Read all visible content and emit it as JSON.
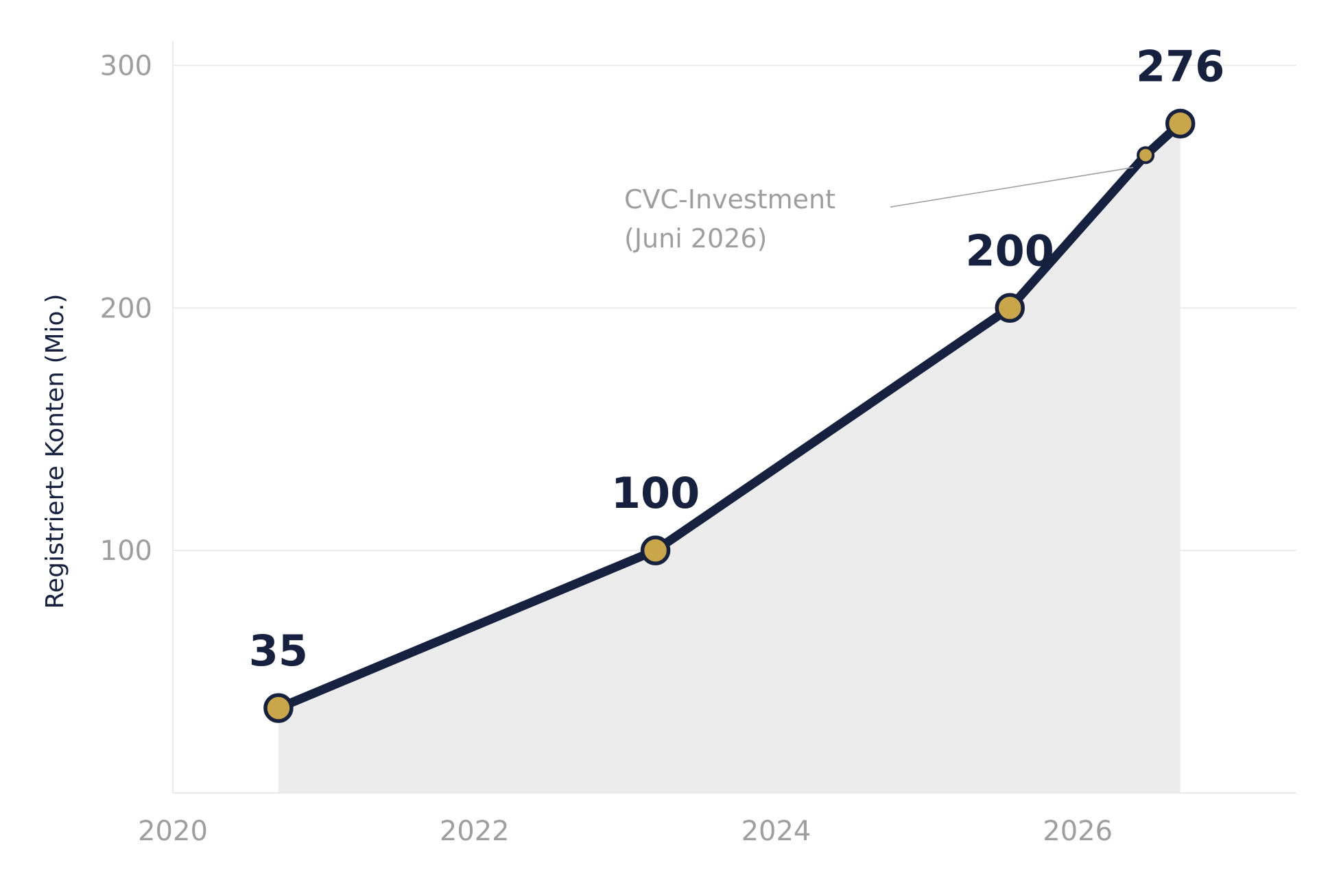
{
  "colors": {
    "line": "#16213f",
    "marker_fill": "#c9a64a",
    "area_fill": "#ececec",
    "grid": "#ebebeb",
    "axis_text": "#9e9e9e",
    "label_text": "#16213f"
  },
  "chart_data": {
    "type": "line",
    "title": "",
    "xlabel": "",
    "ylabel": "Registrierte Konten (Mio.)",
    "xlim": [
      2020,
      2027.45
    ],
    "ylim": [
      0,
      310
    ],
    "grid": true,
    "area_under_line": true,
    "x_ticks": [
      "2020",
      "2022",
      "2024",
      "2026"
    ],
    "y_ticks": [
      "100",
      "200",
      "300"
    ],
    "series": [
      {
        "points": [
          {
            "x": 2020.7,
            "y": 35,
            "label": "35"
          },
          {
            "x": 2023.2,
            "y": 100,
            "label": "100"
          },
          {
            "x": 2025.55,
            "y": 200,
            "label": "200"
          },
          {
            "x": 2026.45,
            "y": 263,
            "label": ""
          },
          {
            "x": 2026.68,
            "y": 276,
            "label": "276"
          }
        ]
      }
    ],
    "annotations": [
      {
        "text_lines": [
          "CVC-Investment",
          "(Juni 2026)"
        ],
        "x": 2026.45,
        "y": 263
      }
    ]
  }
}
